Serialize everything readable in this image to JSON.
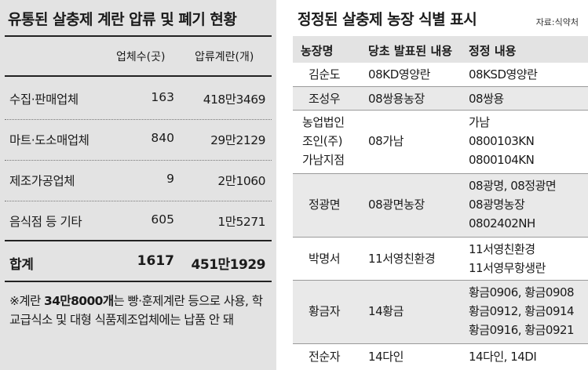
{
  "left_panel": {
    "title": "유통된 살충제 계란 압류 및 폐기 현황",
    "col_count": "업체수(곳)",
    "col_amount": "압류계란(개)",
    "rows": [
      {
        "name": "수집·판매업체",
        "count": "163",
        "amount": "418만3469"
      },
      {
        "name": "마트·도소매업체",
        "count": "840",
        "amount": "29만2129"
      },
      {
        "name": "제조가공업체",
        "count": "9",
        "amount": "2만1060"
      },
      {
        "name": "음식점 등 기타",
        "count": "605",
        "amount": "1만5271"
      }
    ],
    "total": {
      "name": "합계",
      "count": "1617",
      "amount": "451만1929"
    },
    "note_prefix": "※계란 ",
    "note_bold": "34만8000개",
    "note_suffix": "는 빵·훈제계란 등으로 사용, 학교급식소 및 대형 식품제조업체에는 납품 안 돼"
  },
  "right_panel": {
    "title": "정정된 살충제 농장 식별 표시",
    "source": "자료:식약처",
    "headers": {
      "farm": "농장명",
      "original": "당초 발표된 내용",
      "corrected": "정정 내용"
    },
    "rows": [
      {
        "farm": [
          "김순도"
        ],
        "original": "08KD영양란",
        "corrected": [
          "08KSD영양란"
        ]
      },
      {
        "farm": [
          "조성우"
        ],
        "original": "08쌍용농장",
        "corrected": [
          "08쌍용"
        ]
      },
      {
        "farm": [
          "농업법인",
          "조인(주)",
          "가남지점"
        ],
        "original": "08가남",
        "corrected": [
          "가남",
          "0800103KN",
          "0800104KN"
        ]
      },
      {
        "farm": [
          "정광면"
        ],
        "original": "08광면농장",
        "corrected": [
          "08광명, 08정광면",
          "08광명농장",
          "0802402NH"
        ]
      },
      {
        "farm": [
          "박명서"
        ],
        "original": "11서영친환경",
        "corrected": [
          "11서영친환경",
          "11서영무항생란"
        ]
      },
      {
        "farm": [
          "황금자"
        ],
        "original": "14황금",
        "corrected": [
          "황금0906, 황금0908",
          "황금0912, 황금0914",
          "황금0916, 황금0921"
        ]
      },
      {
        "farm": [
          "전순자"
        ],
        "original": "14다인",
        "corrected": [
          "14다인, 14DI"
        ]
      }
    ]
  }
}
